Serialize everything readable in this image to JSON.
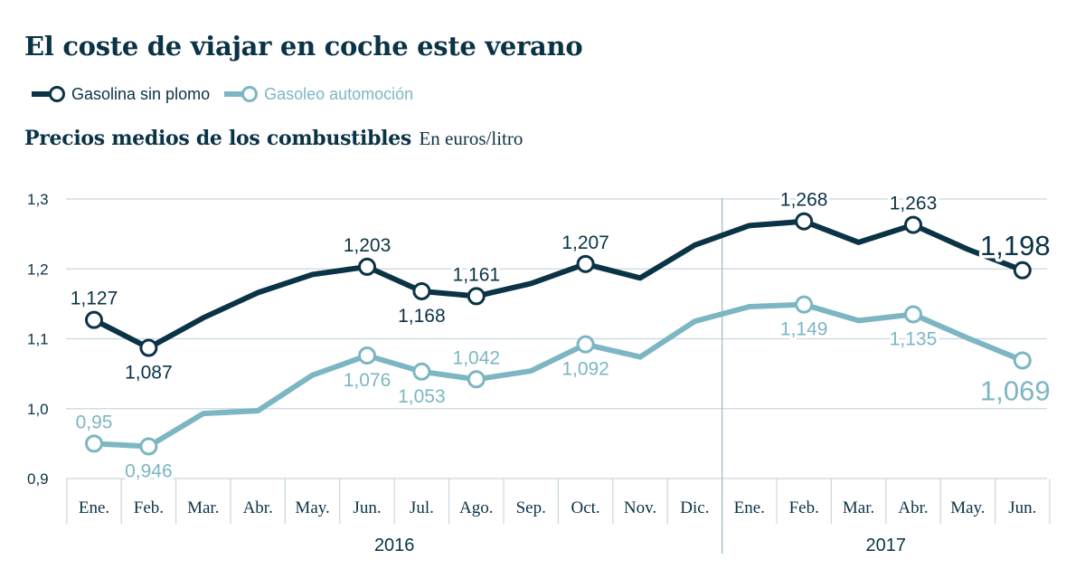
{
  "title": "El coste de viajar en coche este verano",
  "legend": [
    {
      "label": "Gasolina sin plomo",
      "color": "#0b3346"
    },
    {
      "label": "Gasoleo automoción",
      "color": "#7db6c3"
    }
  ],
  "subtitle": {
    "main": "Precios medios de los combustibles",
    "unit": "En euros/litro"
  },
  "chart_data": {
    "type": "line",
    "categories": [
      "Ene.",
      "Feb.",
      "Mar.",
      "Abr.",
      "May.",
      "Jun.",
      "Jul.",
      "Ago.",
      "Sep.",
      "Oct.",
      "Nov.",
      "Dic.",
      "Ene.",
      "Feb.",
      "Mar.",
      "Abr.",
      "May.",
      "Jun."
    ],
    "years": [
      {
        "label": "2016",
        "start": 0,
        "end": 11
      },
      {
        "label": "2017",
        "start": 12,
        "end": 17
      }
    ],
    "ylim": [
      0.9,
      1.3
    ],
    "yticks": [
      0.9,
      1.0,
      1.1,
      1.2,
      1.3
    ],
    "ytick_labels": [
      "0,9",
      "1,0",
      "1,1",
      "1,2",
      "1,3"
    ],
    "grid": true,
    "series": [
      {
        "name": "Gasolina sin plomo",
        "color": "#0b3346",
        "values": [
          1.127,
          1.087,
          1.13,
          1.166,
          1.192,
          1.203,
          1.168,
          1.161,
          1.179,
          1.207,
          1.187,
          1.234,
          1.262,
          1.268,
          1.238,
          1.263,
          1.228,
          1.198
        ],
        "markers": [
          0,
          1,
          5,
          6,
          7,
          9,
          13,
          15,
          17
        ],
        "labels": [
          {
            "i": 0,
            "text": "1,127",
            "pos": "above"
          },
          {
            "i": 1,
            "text": "1,087",
            "pos": "below"
          },
          {
            "i": 5,
            "text": "1,203",
            "pos": "above"
          },
          {
            "i": 6,
            "text": "1,168",
            "pos": "below"
          },
          {
            "i": 7,
            "text": "1,161",
            "pos": "above"
          },
          {
            "i": 9,
            "text": "1,207",
            "pos": "above"
          },
          {
            "i": 13,
            "text": "1,268",
            "pos": "above"
          },
          {
            "i": 15,
            "text": "1,263",
            "pos": "above"
          },
          {
            "i": 17,
            "text": "1,198",
            "pos": "above",
            "large": true
          }
        ]
      },
      {
        "name": "Gasoleo automoción",
        "color": "#7db6c3",
        "values": [
          0.95,
          0.946,
          0.993,
          0.997,
          1.048,
          1.076,
          1.053,
          1.042,
          1.054,
          1.092,
          1.074,
          1.125,
          1.146,
          1.149,
          1.126,
          1.135,
          1.101,
          1.069
        ],
        "markers": [
          0,
          1,
          5,
          6,
          7,
          9,
          13,
          15,
          17
        ],
        "labels": [
          {
            "i": 0,
            "text": "0,95",
            "pos": "above"
          },
          {
            "i": 1,
            "text": "0,946",
            "pos": "below"
          },
          {
            "i": 5,
            "text": "1,076",
            "pos": "below"
          },
          {
            "i": 6,
            "text": "1,053",
            "pos": "below"
          },
          {
            "i": 7,
            "text": "1,042",
            "pos": "above"
          },
          {
            "i": 9,
            "text": "1,092",
            "pos": "below"
          },
          {
            "i": 13,
            "text": "1,149",
            "pos": "below"
          },
          {
            "i": 15,
            "text": "1,135",
            "pos": "below"
          },
          {
            "i": 17,
            "text": "1,069",
            "pos": "below",
            "large": true
          }
        ]
      }
    ]
  }
}
